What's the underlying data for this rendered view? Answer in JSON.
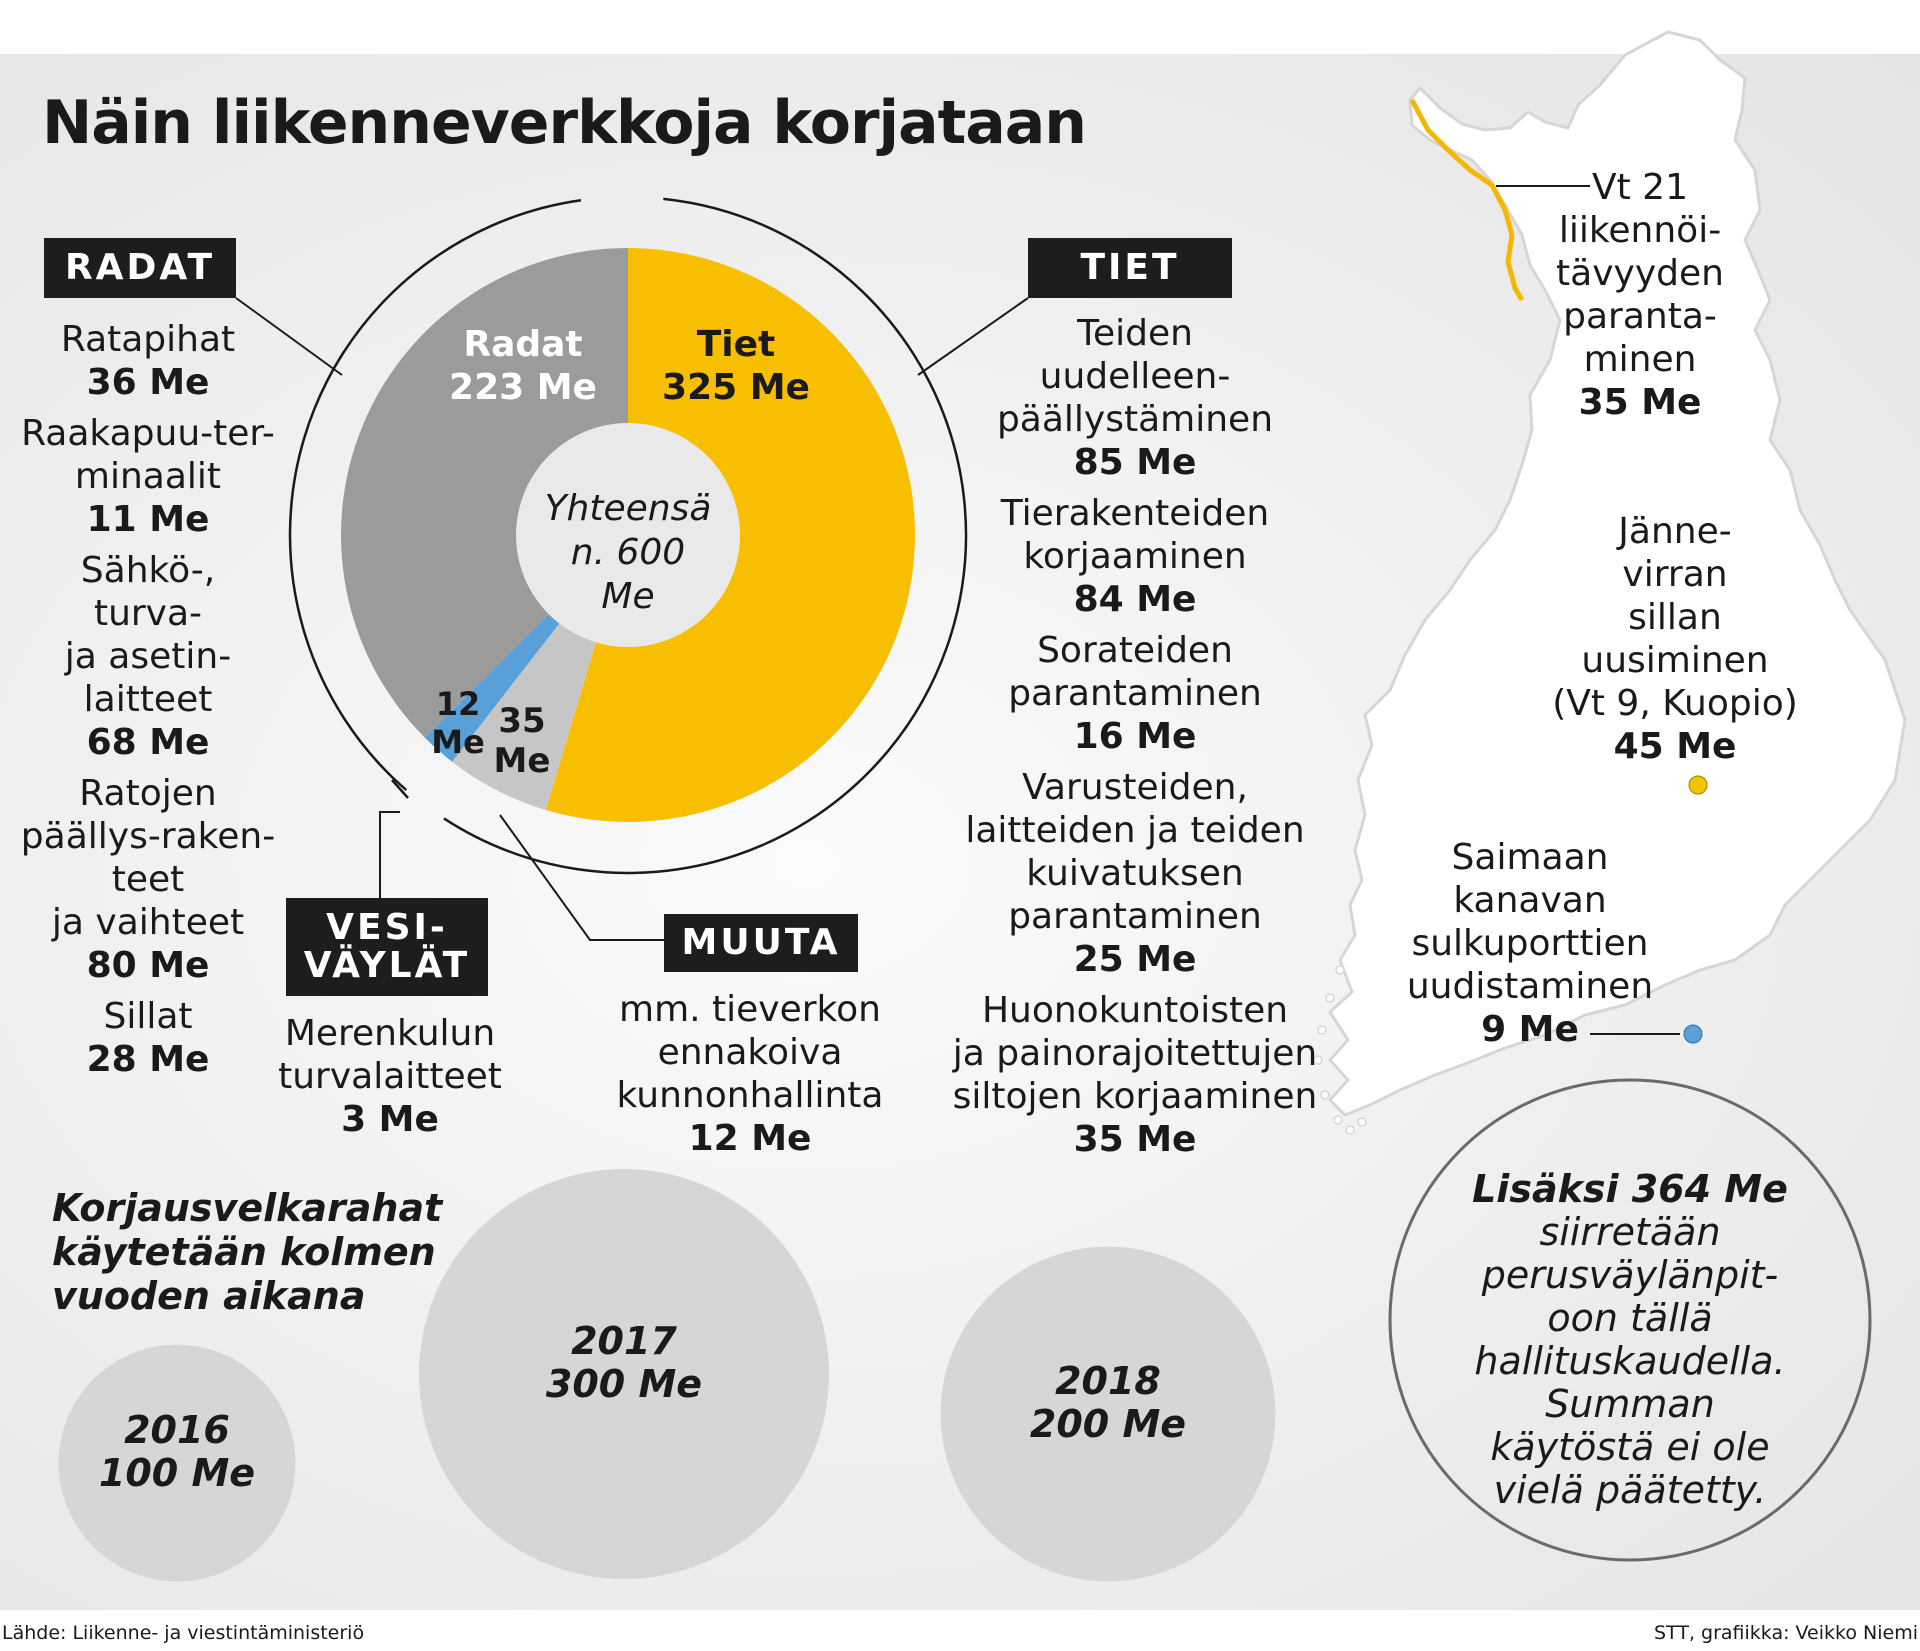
{
  "title": "Näin liikenneverkkoja korjataan",
  "chart_data": {
    "type": "pie",
    "title": "Näin liikenneverkkoja korjataan",
    "center_label": "Yhteensä\nn. 600\nMe",
    "unit": "Me",
    "slices": [
      {
        "name": "Tiet",
        "value": 325,
        "value_label": "325 Me",
        "color": "#f8be00"
      },
      {
        "name": "Muuta",
        "value": 35,
        "value_label": "35\nMe",
        "color": "#c6c6c6"
      },
      {
        "name": "Vesiväylät",
        "value": 12,
        "value_label": "12\nMe",
        "color": "#5aa0d8"
      },
      {
        "name": "Radat",
        "value": 223,
        "value_label": "223 Me",
        "color": "#9b9b9b"
      }
    ],
    "yearly": [
      {
        "year": "2016",
        "value": 100,
        "label": "100 Me"
      },
      {
        "year": "2017",
        "value": 300,
        "label": "300 Me"
      },
      {
        "year": "2018",
        "value": 200,
        "label": "200 Me"
      }
    ]
  },
  "pie_labels": {
    "radat_name": "Radat",
    "radat_value": "223 Me",
    "tiet_name": "Tiet",
    "tiet_value": "325 Me",
    "muuta_value": "35\nMe",
    "vesi_value": "12\nMe",
    "center": "Yhteensä\nn. 600\nMe"
  },
  "radat": {
    "tag": "RADAT",
    "items": [
      {
        "label": "Ratapihat",
        "value": "36 Me"
      },
      {
        "label": "Raakapuu-ter-\nminaalit",
        "value": "11 Me"
      },
      {
        "label": "Sähkö-,\nturva-\nja asetin-\nlaitteet",
        "value": "68 Me"
      },
      {
        "label": "Ratojen\npäällys-raken-\nteet\nja vaihteet",
        "value": "80 Me"
      },
      {
        "label": "Sillat",
        "value": "28 Me"
      }
    ]
  },
  "tiet": {
    "tag": "TIET",
    "items": [
      {
        "label": "Teiden\nuudelleen-\npäällystäminen",
        "value": "85 Me"
      },
      {
        "label": "Tierakenteiden\nkorjaaminen",
        "value": "84 Me"
      },
      {
        "label": "Sorateiden\nparantaminen",
        "value": "16 Me"
      },
      {
        "label": "Varusteiden,\nlaitteiden ja teiden\nkuivatuksen\nparantaminen",
        "value": "25 Me"
      },
      {
        "label": "Huonokuntoisten\nja painorajoitettujen\nsiltojen korjaaminen",
        "value": "35 Me"
      }
    ]
  },
  "vesi": {
    "tag": "VESI-\nVÄYLÄT",
    "items": [
      {
        "label": "Merenkulun\nturvalaitteet",
        "value": "3 Me"
      }
    ]
  },
  "muuta": {
    "tag": "MUUTA",
    "items": [
      {
        "label": "mm. tieverkon\nennakoiva\nkunnonhallinta",
        "value": "12 Me"
      }
    ]
  },
  "map": {
    "vt21": {
      "label": "Vt 21\nliikennöi-\ntävyyden\nparanta-\nminen",
      "value": "35 Me"
    },
    "kuopio": {
      "label": "Jänne-\nvirran\nsillan\nuusiminen\n(Vt 9, Kuopio)",
      "value": "45 Me"
    },
    "saimaa": {
      "label": "Saimaan\nkanavan\nsulkuporttien\nuudistaminen",
      "value": "9 Me"
    },
    "road_color": "#f5b800",
    "kuopio_dot_color": "#f5c400",
    "saimaa_dot_color": "#5aa0d8"
  },
  "years_heading": "Korjausvelkarahat\nkäytetään kolmen\nvuoden aikana",
  "extra": {
    "bold": "Lisäksi 364 Me",
    "rest": "siirretään\nperusväylänpit-\noon tällä\nhallituskaudella.\nSumman\nkäytöstä ei ole\nvielä päätetty."
  },
  "source": "Lähde: Liikenne- ja viestintäministeriö",
  "credit": "STT, grafiikka: Veikko Niemi"
}
